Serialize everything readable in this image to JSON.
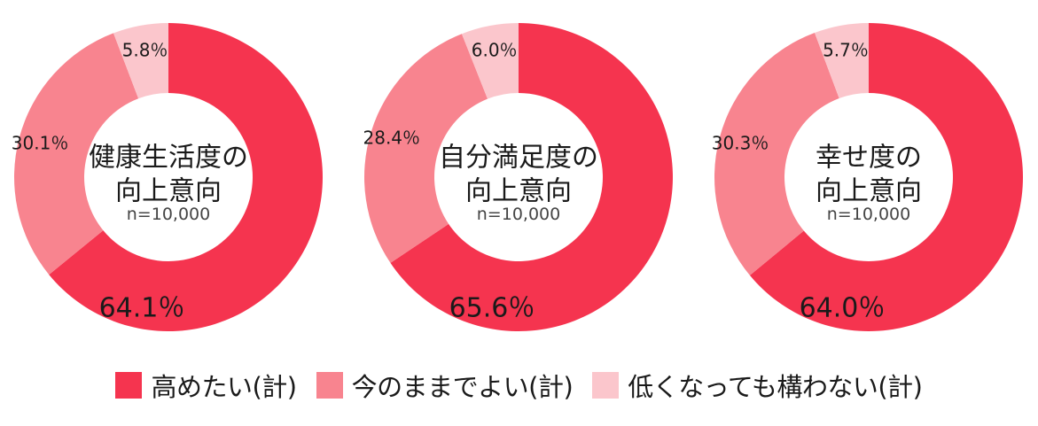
{
  "colors": {
    "raise": "#f5344f",
    "keep": "#f8848f",
    "lower": "#fbc6cc",
    "text": "#1a1a1a",
    "subtext": "#444444"
  },
  "chart_data": [
    {
      "type": "pie",
      "title": "健康生活度の向上意向",
      "title_lines": [
        "健康生活度の",
        "向上意向"
      ],
      "n_label": "n=10,000",
      "categories": [
        "高めたい(計)",
        "今のままでよい(計)",
        "低くなっても構わない(計)"
      ],
      "values": [
        64.1,
        30.1,
        5.8
      ],
      "labels": [
        "64.1％",
        "30.1％",
        "5.8％"
      ]
    },
    {
      "type": "pie",
      "title": "自分満足度の向上意向",
      "title_lines": [
        "自分満足度の",
        "向上意向"
      ],
      "n_label": "n=10,000",
      "categories": [
        "高めたい(計)",
        "今のままでよい(計)",
        "低くなっても構わない(計)"
      ],
      "values": [
        65.6,
        28.4,
        6.0
      ],
      "labels": [
        "65.6％",
        "28.4％",
        "6.0％"
      ]
    },
    {
      "type": "pie",
      "title": "幸せ度の向上意向",
      "title_lines": [
        "幸せ度の",
        "向上意向"
      ],
      "n_label": "n=10,000",
      "categories": [
        "高めたい(計)",
        "今のままでよい(計)",
        "低くなっても構わない(計)"
      ],
      "values": [
        64.0,
        30.3,
        5.7
      ],
      "labels": [
        "64.0％",
        "30.3％",
        "5.7％"
      ]
    }
  ],
  "legend": [
    {
      "label": "高めたい(計)",
      "color": "#f5344f"
    },
    {
      "label": "今のままでよい(計)",
      "color": "#f8848f"
    },
    {
      "label": "低くなっても構わない(計)",
      "color": "#fbc6cc"
    }
  ]
}
